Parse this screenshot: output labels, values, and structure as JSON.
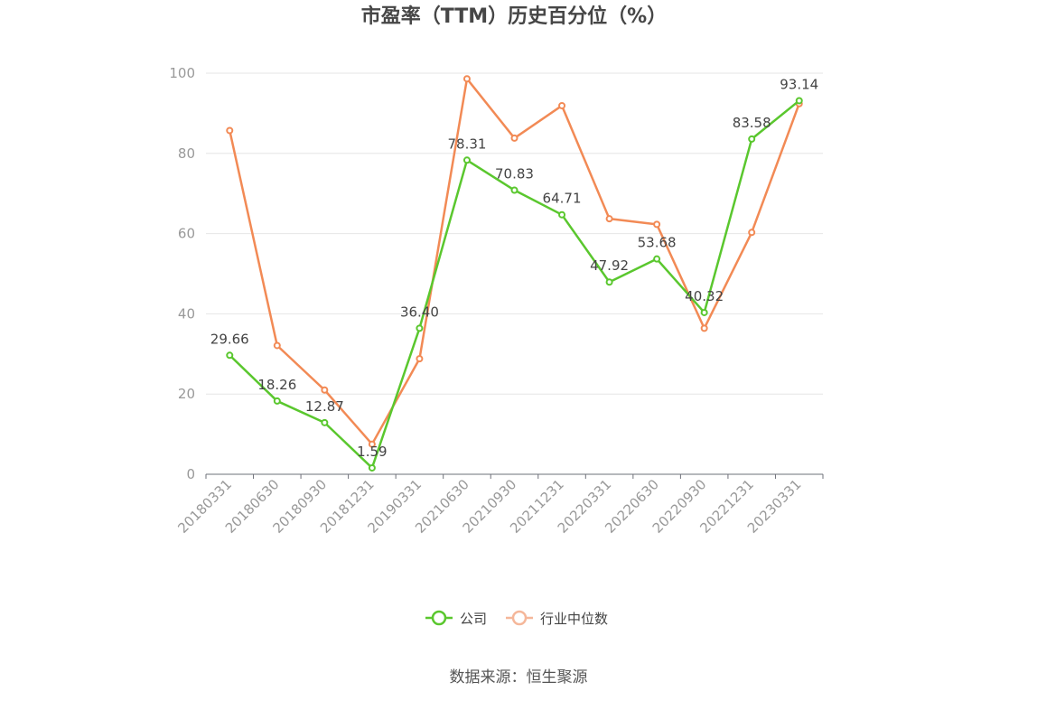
{
  "chart_data": {
    "type": "line",
    "title": "市盈率（TTM）历史百分位（%）",
    "categories": [
      "20180331",
      "20180630",
      "20180930",
      "20181231",
      "20190331",
      "20210630",
      "20210930",
      "20211231",
      "20220331",
      "20220630",
      "20220930",
      "20221231",
      "20230331"
    ],
    "ylim": [
      0,
      100
    ],
    "yticks": [
      0,
      20,
      40,
      60,
      80,
      100
    ],
    "grid": true,
    "legend_position": "bottom-center",
    "series": [
      {
        "name": "公司",
        "color": "#5ac72e",
        "values": [
          29.66,
          18.26,
          12.87,
          1.59,
          36.4,
          78.31,
          70.83,
          64.71,
          47.92,
          53.68,
          40.32,
          83.58,
          93.14
        ],
        "labels": [
          "29.66",
          "18.26",
          "12.87",
          "1.59",
          "36.40",
          "78.31",
          "70.83",
          "64.71",
          "47.92",
          "53.68",
          "40.32",
          "83.58",
          "93.14"
        ]
      },
      {
        "name": "行业中位数",
        "color": "#f28a55",
        "values": [
          85.7,
          32.1,
          21.0,
          7.5,
          28.8,
          98.6,
          83.8,
          91.9,
          63.7,
          62.3,
          36.4,
          60.3,
          92.4
        ]
      }
    ],
    "legend_inactive_color": "#f5b79a",
    "source": "数据来源：恒生聚源"
  }
}
